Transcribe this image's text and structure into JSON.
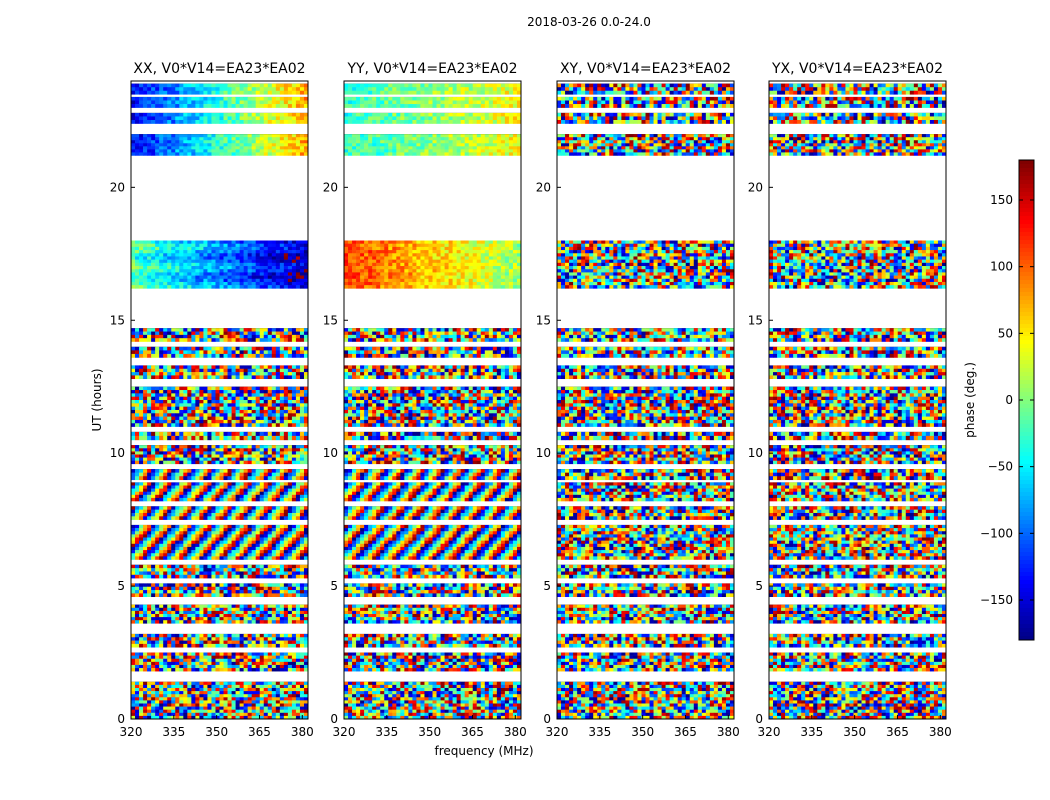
{
  "figure": {
    "suptitle": "2018-03-26 0.0-24.0"
  },
  "chart_data": {
    "type": "heatmap",
    "description_of_axes": "UT time vs frequency dynamic phase spectra, one panel per polarization",
    "xlabel": "frequency (MHz)",
    "ylabel": "UT (hours)",
    "xlim": [
      320,
      382
    ],
    "ylim": [
      0,
      24
    ],
    "x_ticks": [
      320,
      335,
      350,
      365,
      380
    ],
    "y_ticks": [
      0,
      5,
      10,
      15,
      20
    ],
    "panels": [
      {
        "name": "XX",
        "title": "XX, V0*V14=EA23*EA02",
        "coherent": true
      },
      {
        "name": "YY",
        "title": "YY, V0*V14=EA23*EA02",
        "coherent": true
      },
      {
        "name": "XY",
        "title": "XY, V0*V14=EA23*EA02",
        "coherent": false
      },
      {
        "name": "YX",
        "title": "YX, V0*V14=EA23*EA02",
        "coherent": false
      }
    ],
    "data_segments_hours": [
      [
        0.0,
        1.4
      ],
      [
        1.8,
        2.5
      ],
      [
        2.7,
        3.2
      ],
      [
        3.6,
        4.3
      ],
      [
        4.6,
        5.1
      ],
      [
        5.3,
        5.8
      ],
      [
        6.0,
        7.3
      ],
      [
        7.5,
        8.0
      ],
      [
        8.2,
        8.9
      ],
      [
        9.0,
        9.4
      ],
      [
        9.6,
        10.3
      ],
      [
        10.5,
        10.8
      ],
      [
        11.0,
        12.5
      ],
      [
        12.8,
        13.3
      ],
      [
        13.6,
        14.0
      ],
      [
        14.2,
        14.7
      ],
      [
        16.2,
        18.0
      ],
      [
        21.2,
        22.0
      ],
      [
        22.4,
        22.8
      ],
      [
        23.0,
        23.4
      ],
      [
        23.5,
        23.9
      ]
    ],
    "coherent_regions_hours": [
      [
        6.0,
        9.4
      ],
      [
        16.2,
        18.0
      ],
      [
        21.2,
        23.9
      ]
    ],
    "colorbar": {
      "label": "phase (deg.)",
      "range": [
        -180,
        180
      ],
      "ticks": [
        150,
        100,
        50,
        0,
        -50,
        -100,
        -150
      ],
      "colormap": "jet"
    }
  }
}
